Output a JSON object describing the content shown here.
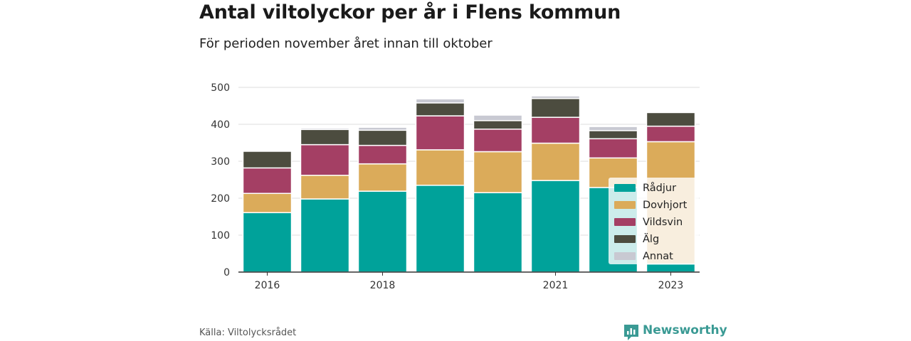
{
  "title": "Antal viltolyckor per år i Flens kommun",
  "subtitle": "För perioden november året innan till oktober",
  "source": "Källa: Viltolycksrådet",
  "logo_text": "Newsworthy",
  "chart_data": {
    "type": "bar",
    "stacked": true,
    "categories": [
      "2016",
      "2017",
      "2018",
      "2019",
      "2020",
      "2021",
      "2022",
      "2023"
    ],
    "x_tick_labels": [
      "2016",
      "",
      "2018",
      "",
      "",
      "2021",
      "",
      "2023"
    ],
    "y_ticks": [
      0,
      100,
      200,
      300,
      400,
      500
    ],
    "ylim": [
      0,
      500
    ],
    "grid": true,
    "legend_position": "bottom-right",
    "series": [
      {
        "name": "Rådjur",
        "color": "#00a29a",
        "values": [
          161,
          198,
          219,
          235,
          215,
          248,
          229,
          22
        ]
      },
      {
        "name": "Dovhjort",
        "color": "#dbab5a",
        "values": [
          52,
          64,
          74,
          96,
          111,
          101,
          80,
          331
        ]
      },
      {
        "name": "Vildsvin",
        "color": "#a43f64",
        "values": [
          69,
          83,
          50,
          92,
          61,
          70,
          52,
          42
        ]
      },
      {
        "name": "Älg",
        "color": "#4c4c3f",
        "values": [
          45,
          41,
          41,
          35,
          23,
          51,
          22,
          37
        ]
      },
      {
        "name": "Annat",
        "color": "#c8c9d2",
        "values": [
          0,
          4,
          8,
          11,
          15,
          7,
          11,
          3
        ]
      }
    ]
  }
}
